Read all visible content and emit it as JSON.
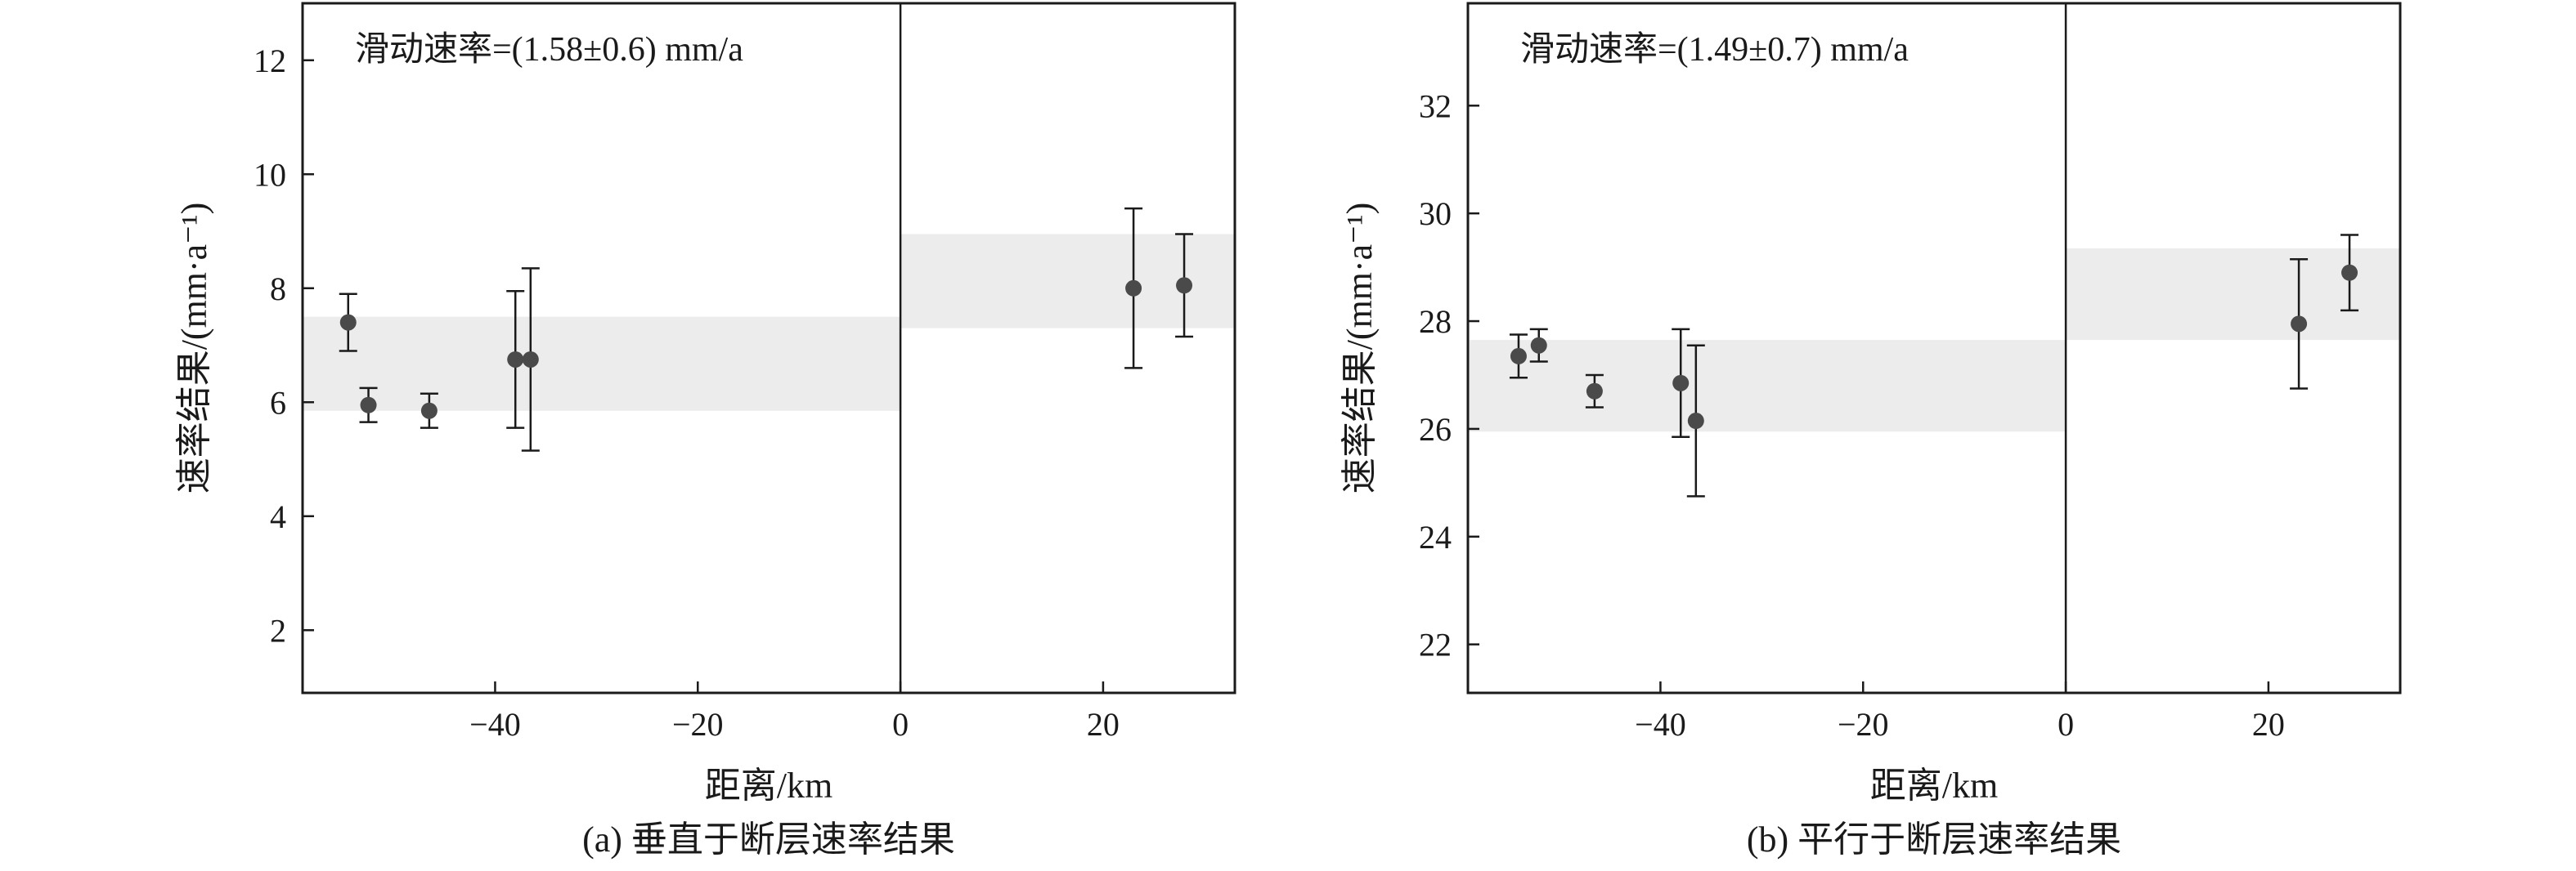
{
  "chart_data": [
    {
      "type": "scatter",
      "caption": "(a) 垂直于断层速率结果",
      "annotation": "滑动速率=(1.58±0.6) mm/a",
      "xlabel": "距离/km",
      "ylabel": "速率结果/(mm·a⁻¹)",
      "xlim": [
        -59,
        33
      ],
      "ylim": [
        0.9,
        13
      ],
      "xticks": [
        -40,
        -20,
        0,
        20
      ],
      "xtick_labels": [
        "−40",
        "−20",
        "0",
        "20"
      ],
      "yticks": [
        2,
        4,
        6,
        8,
        10,
        12
      ],
      "ytick_labels": [
        "2",
        "4",
        "6",
        "8",
        "10",
        "12"
      ],
      "fault_x": 0,
      "bands": [
        {
          "x0": -59,
          "x1": 0,
          "y0": 5.85,
          "y1": 7.5
        },
        {
          "x0": 0,
          "x1": 33,
          "y0": 7.3,
          "y1": 8.95
        }
      ],
      "points": [
        {
          "x": -54.5,
          "y": 7.4,
          "err": 0.5
        },
        {
          "x": -52.5,
          "y": 5.95,
          "err": 0.3
        },
        {
          "x": -46.5,
          "y": 5.85,
          "err": 0.3
        },
        {
          "x": -38,
          "y": 6.75,
          "err": 1.2
        },
        {
          "x": -36.5,
          "y": 6.75,
          "err": 1.6
        },
        {
          "x": 23,
          "y": 8.0,
          "err": 1.4
        },
        {
          "x": 28,
          "y": 8.05,
          "err": 0.9
        }
      ],
      "grid": false
    },
    {
      "type": "scatter",
      "caption": "(b) 平行于断层速率结果",
      "annotation": "滑动速率=(1.49±0.7) mm/a",
      "xlabel": "距离/km",
      "ylabel": "速率结果/(mm·a⁻¹)",
      "xlim": [
        -59,
        33
      ],
      "ylim": [
        21.1,
        33.9
      ],
      "xticks": [
        -40,
        -20,
        0,
        20
      ],
      "xtick_labels": [
        "−40",
        "−20",
        "0",
        "20"
      ],
      "yticks": [
        22,
        24,
        26,
        28,
        30,
        32
      ],
      "ytick_labels": [
        "22",
        "24",
        "26",
        "28",
        "30",
        "32"
      ],
      "fault_x": 0,
      "bands": [
        {
          "x0": -59,
          "x1": 0,
          "y0": 25.95,
          "y1": 27.65
        },
        {
          "x0": 0,
          "x1": 33,
          "y0": 27.65,
          "y1": 29.35
        }
      ],
      "points": [
        {
          "x": -54,
          "y": 27.35,
          "err": 0.4
        },
        {
          "x": -52,
          "y": 27.55,
          "err": 0.3
        },
        {
          "x": -46.5,
          "y": 26.7,
          "err": 0.3
        },
        {
          "x": -38,
          "y": 26.85,
          "err": 1.0
        },
        {
          "x": -36.5,
          "y": 26.15,
          "err": 1.4
        },
        {
          "x": 23,
          "y": 27.95,
          "err": 1.2
        },
        {
          "x": 28,
          "y": 28.9,
          "err": 0.7
        }
      ],
      "grid": false
    }
  ],
  "colors": {
    "band": "#ececec",
    "marker": "#4a4a4a",
    "axis": "#1a1a1a"
  }
}
